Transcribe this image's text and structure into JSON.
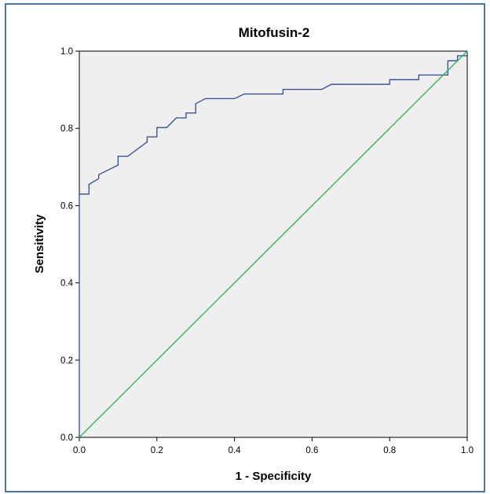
{
  "chart_data": {
    "type": "line",
    "title": "Mitofusin-2",
    "xlabel": "1 - Specificity",
    "ylabel": "Sensitivity",
    "xlim": [
      0,
      1
    ],
    "ylim": [
      0,
      1
    ],
    "x_ticks": [
      "0.0",
      "0.2",
      "0.4",
      "0.6",
      "0.8",
      "1.0"
    ],
    "y_ticks": [
      "0.0",
      "0.2",
      "0.4",
      "0.6",
      "0.8",
      "1.0"
    ],
    "grid": false,
    "legend": "none",
    "plot_background": "#efefef",
    "series": [
      {
        "color": "#2e4a9a",
        "points": [
          [
            0.0,
            0.0
          ],
          [
            0.0,
            0.63
          ],
          [
            0.025,
            0.63
          ],
          [
            0.025,
            0.655
          ],
          [
            0.05,
            0.67
          ],
          [
            0.05,
            0.68
          ],
          [
            0.1,
            0.705
          ],
          [
            0.1,
            0.728
          ],
          [
            0.125,
            0.728
          ],
          [
            0.175,
            0.765
          ],
          [
            0.175,
            0.778
          ],
          [
            0.2,
            0.778
          ],
          [
            0.2,
            0.802
          ],
          [
            0.225,
            0.802
          ],
          [
            0.25,
            0.827
          ],
          [
            0.275,
            0.827
          ],
          [
            0.275,
            0.84
          ],
          [
            0.3,
            0.84
          ],
          [
            0.3,
            0.864
          ],
          [
            0.325,
            0.877
          ],
          [
            0.4,
            0.877
          ],
          [
            0.425,
            0.889
          ],
          [
            0.525,
            0.889
          ],
          [
            0.525,
            0.901
          ],
          [
            0.625,
            0.901
          ],
          [
            0.65,
            0.914
          ],
          [
            0.8,
            0.914
          ],
          [
            0.8,
            0.926
          ],
          [
            0.875,
            0.926
          ],
          [
            0.875,
            0.938
          ],
          [
            0.95,
            0.938
          ],
          [
            0.95,
            0.975
          ],
          [
            0.975,
            0.975
          ],
          [
            0.975,
            0.988
          ],
          [
            1.0,
            0.988
          ],
          [
            1.0,
            1.0
          ]
        ]
      },
      {
        "color": "#2db34a",
        "points": [
          [
            0.0,
            0.0
          ],
          [
            1.0,
            1.0
          ]
        ]
      }
    ]
  }
}
